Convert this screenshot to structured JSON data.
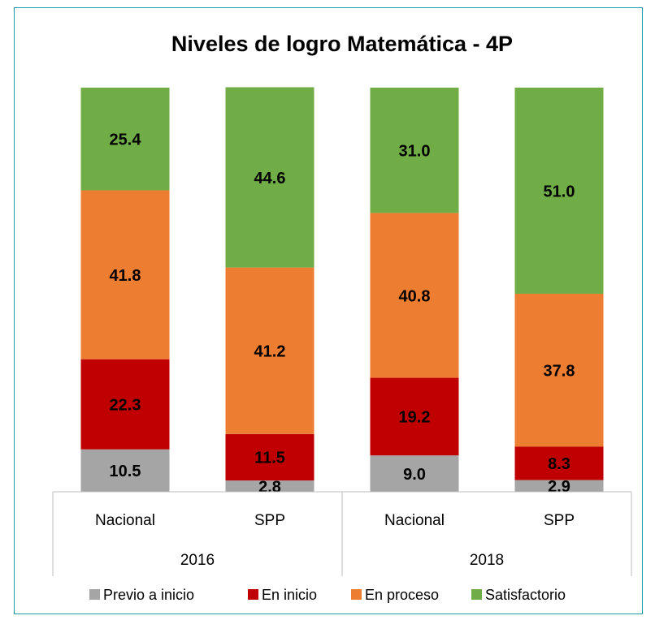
{
  "chart_data": {
    "type": "stacked-bar",
    "title": "Niveles de logro Matemática - 4P",
    "groups": [
      {
        "name": "2016",
        "categories": [
          "Nacional",
          "SPP"
        ]
      },
      {
        "name": "2018",
        "categories": [
          "Nacional",
          "SPP"
        ]
      }
    ],
    "ylim": [
      0,
      100
    ],
    "series": [
      {
        "name": "Previo a inicio",
        "color": "#a5a5a5",
        "values": [
          10.5,
          2.8,
          9.0,
          2.9
        ],
        "value_labels": [
          "10.5",
          "2.8",
          "9.0",
          "2.9"
        ]
      },
      {
        "name": "En inicio",
        "color": "#c00000",
        "values": [
          22.3,
          11.5,
          19.2,
          8.3
        ],
        "value_labels": [
          "22.3",
          "11.5",
          "19.2",
          "8.3"
        ]
      },
      {
        "name": "En proceso",
        "color": "#ed7d31",
        "values": [
          41.8,
          41.2,
          40.8,
          37.8
        ],
        "value_labels": [
          "41.8",
          "41.2",
          "40.8",
          "37.8"
        ]
      },
      {
        "name": "Satisfactorio",
        "color": "#70ad47",
        "values": [
          25.4,
          44.6,
          31.0,
          51.0
        ],
        "value_labels": [
          "25.4",
          "44.6",
          "31.0",
          "51.0"
        ]
      }
    ],
    "legend": "bottom"
  }
}
